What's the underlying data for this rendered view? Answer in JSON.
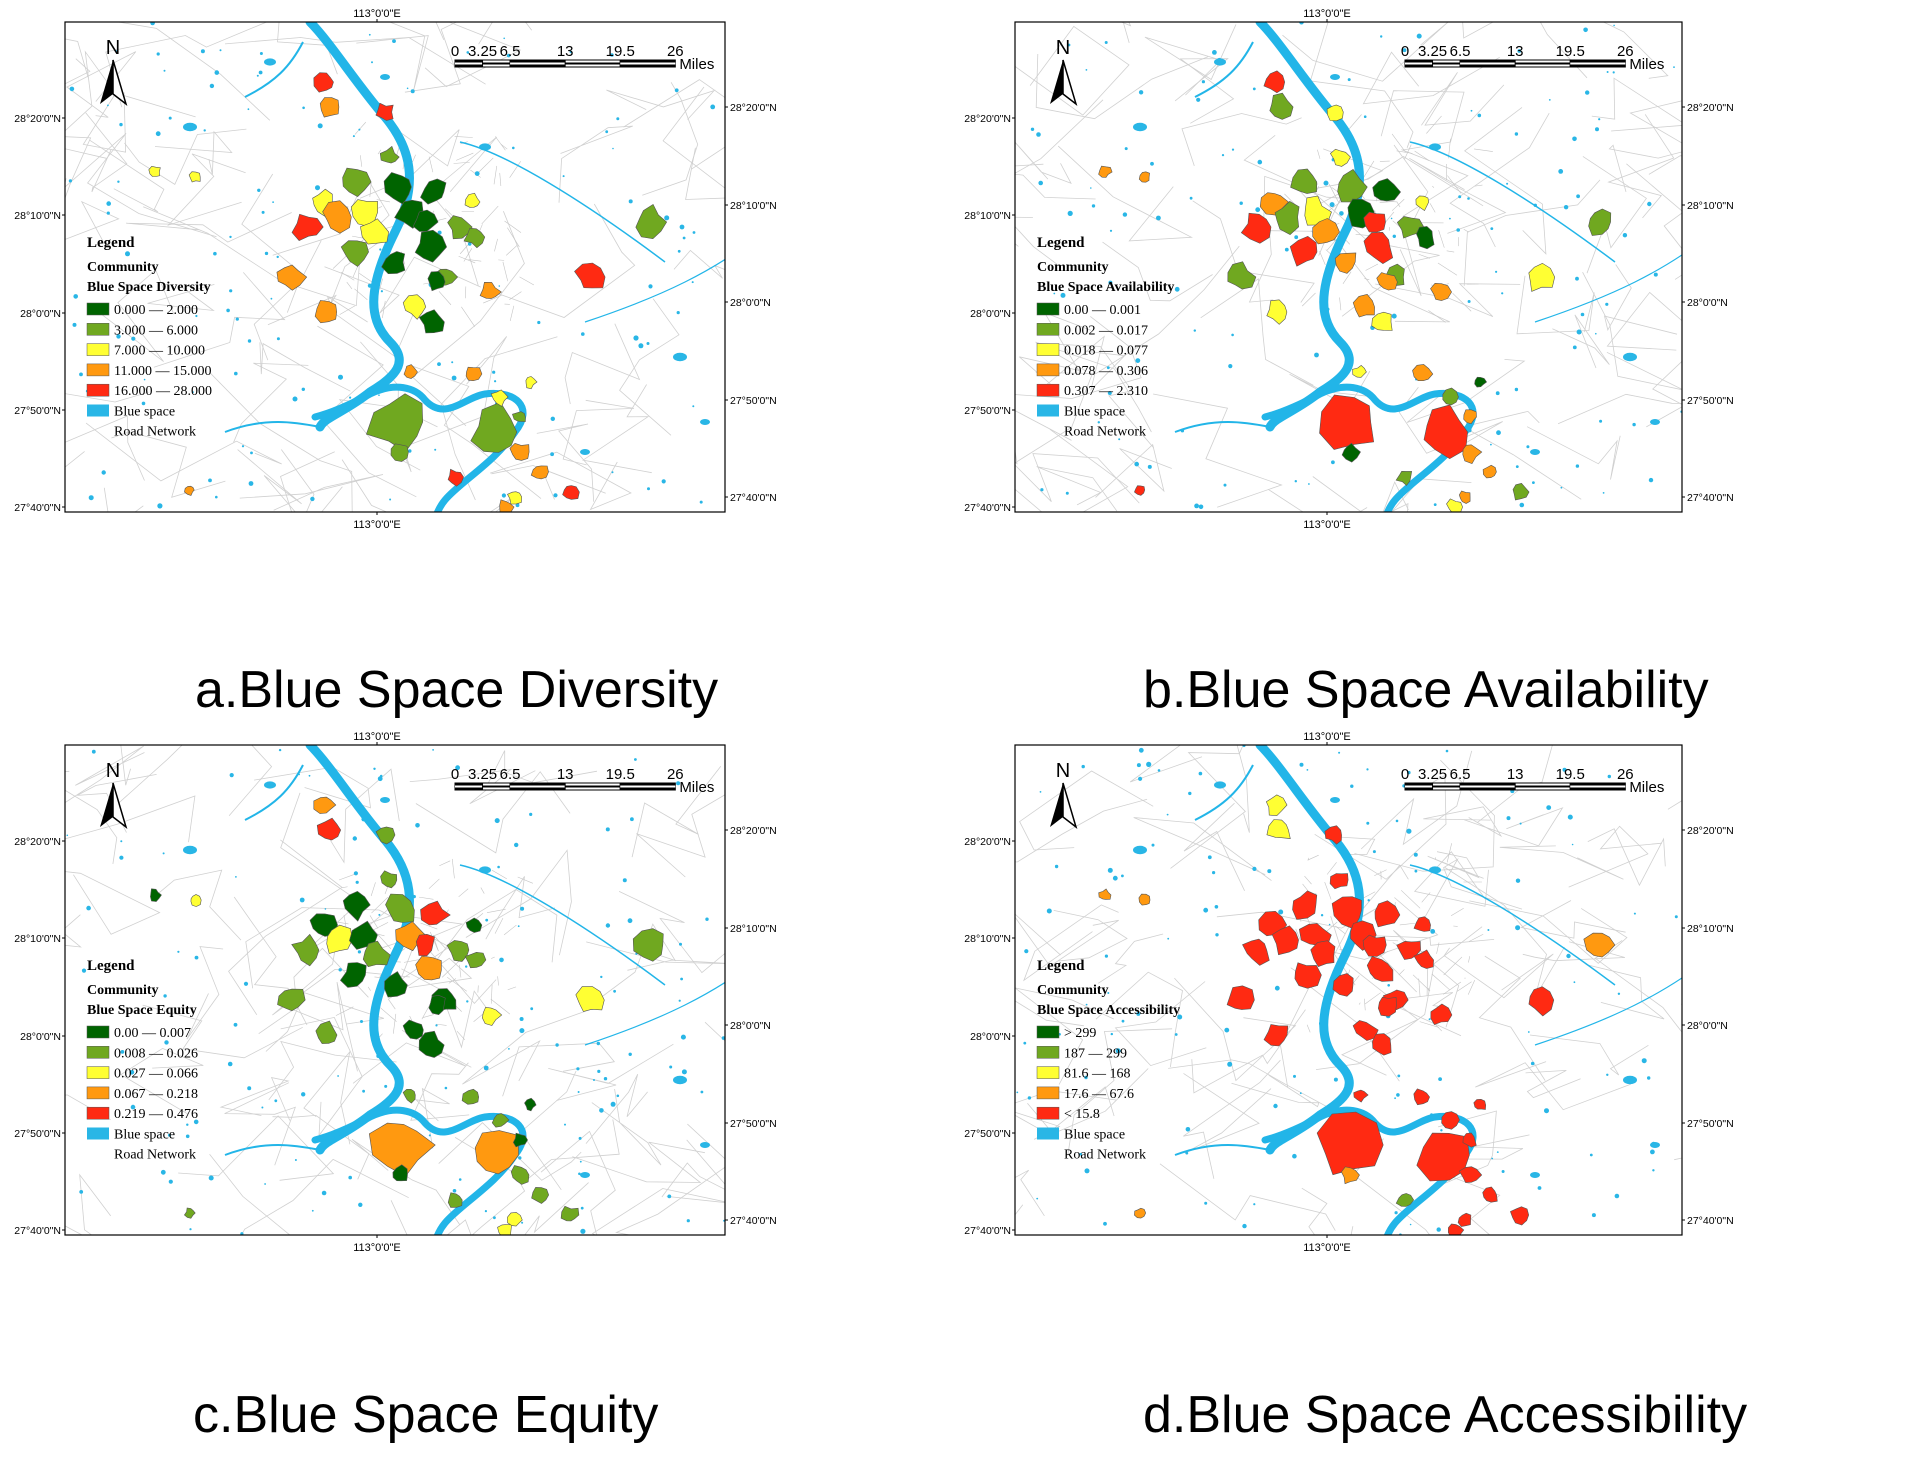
{
  "colors": {
    "water": "#29b6e6",
    "river": "#22b5e8",
    "road": "#d0d0d0",
    "class1": "#006400",
    "class2": "#70a820",
    "class3": "#ffff33",
    "class4": "#ff9910",
    "class5": "#ff2a12"
  },
  "common": {
    "north_letter": "N",
    "scale_numbers": [
      "0",
      "3.25",
      "6.5",
      "13",
      "19.5",
      "26"
    ],
    "scale_unit": "Miles",
    "lon_label": "113°0'0\"E",
    "left_lat_labels": [
      "28°20'0\"N",
      "28°10'0\"N",
      "28°0'0\"N",
      "27°50'0\"N",
      "27°40'0\"N"
    ],
    "right_lat_labels": [
      "28°20'0\"N",
      "28°10'0\"N",
      "28°0'0\"N",
      "27°50'0\"N",
      "27°40'0\"N"
    ],
    "legend_title": "Legend",
    "legend_community": "Community",
    "legend_blue_space": "Blue space",
    "legend_road": "Road Network"
  },
  "panels": [
    {
      "caption": "a.Blue Space Diversity",
      "legend_variable": "Blue Space Diversity",
      "classes": [
        "0.000 — 2.000",
        "3.000 — 6.000",
        "7.000 — 10.000",
        "11.000 — 15.000",
        "16.000 — 28.000"
      ]
    },
    {
      "caption": "b.Blue Space Availability",
      "legend_variable": "Blue Space Availability",
      "classes": [
        "0.00 — 0.001",
        "0.002 — 0.017",
        "0.018 — 0.077",
        "0.078 — 0.306",
        "0.307 — 2.310"
      ]
    },
    {
      "caption": "c.Blue Space Equity",
      "legend_variable": "Blue Space Equity",
      "classes": [
        "0.00 — 0.007",
        "0.008 — 0.026",
        "0.027 — 0.066",
        "0.067 — 0.218",
        "0.219 — 0.476"
      ]
    },
    {
      "caption": "d.Blue Space Accessibility",
      "legend_variable": "Blue Space Accessibility",
      "classes": [
        "> 299",
        "187 — 299",
        "81.6 — 168",
        "17.6 — 67.6",
        "< 15.8"
      ]
    }
  ]
}
